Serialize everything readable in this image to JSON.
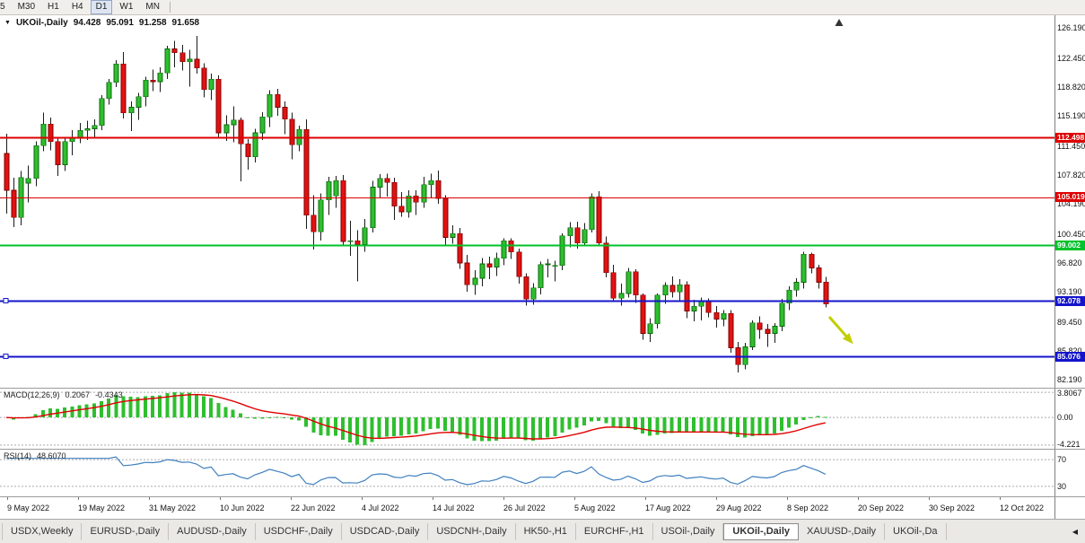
{
  "icons": {
    "dropdown": "▼",
    "scroll_left": "◀",
    "shift_marker": "triangle-up"
  },
  "toolbar": {
    "timeframes": [
      "5",
      "M30",
      "H1",
      "H4",
      "D1",
      "W1",
      "MN"
    ],
    "active_timeframe": "D1"
  },
  "chart": {
    "symbol": "UKOil-,Daily",
    "open": "94.428",
    "high": "95.091",
    "low": "91.258",
    "close": "91.658"
  },
  "chart_data": {
    "type": "candlestick",
    "symbol": "UKOil-,Daily",
    "timeframe": "Daily",
    "y_range": [
      81.2,
      127.8
    ],
    "y_ticks": [
      "126.190",
      "122.450",
      "118.820",
      "115.190",
      "111.450",
      "107.820",
      "104.190",
      "100.450",
      "96.820",
      "93.190",
      "89.450",
      "85.820",
      "82.190"
    ],
    "x_labels": [
      "9 May 2022",
      "19 May 2022",
      "31 May 2022",
      "10 Jun 2022",
      "22 Jun 2022",
      "4 Jul 2022",
      "14 Jul 2022",
      "26 Jul 2022",
      "5 Aug 2022",
      "17 Aug 2022",
      "29 Aug 2022",
      "8 Sep 2022",
      "20 Sep 2022",
      "30 Sep 2022",
      "12 Oct 2022"
    ],
    "x_label_start": 8,
    "x_label_step": 79,
    "bar_x0": 7,
    "bar_step": 8.15,
    "body_width": 5,
    "up_fill": "#2FBE2F",
    "up_border": "#0B6A0B",
    "down_fill": "#E31212",
    "down_border": "#7E0000",
    "wick_color": "#1A1A1A",
    "shift_marker_x": 935,
    "arrow": {
      "x1": 924,
      "y1": 336,
      "x2": 946,
      "y2": 361,
      "color": "#C2CE00"
    },
    "hlines": [
      {
        "value": 112.498,
        "label": "112.498",
        "color": "#DE0000",
        "width": 2,
        "anchor": false
      },
      {
        "value": 105.019,
        "label": "105.019",
        "color": "#DE0000",
        "width": 1,
        "anchor": false
      },
      {
        "value": 99.002,
        "label": "99.002",
        "color": "#00C22A",
        "width": 2,
        "anchor": false
      },
      {
        "value": 92.078,
        "label": "92.078",
        "color": "#1414CC",
        "width": 2,
        "anchor": true
      },
      {
        "value": 85.076,
        "label": "85.076",
        "color": "#1414CC",
        "width": 2,
        "anchor": true
      }
    ],
    "candles": [
      [
        110.5,
        113.0,
        103.0,
        105.9
      ],
      [
        105.9,
        107.5,
        101.3,
        102.5
      ],
      [
        102.5,
        108.3,
        101.5,
        107.5
      ],
      [
        106.8,
        109.0,
        104.4,
        107.4
      ],
      [
        107.4,
        112.0,
        106.4,
        111.5
      ],
      [
        111.5,
        115.6,
        110.8,
        114.2
      ],
      [
        114.2,
        115.0,
        110.9,
        112.0
      ],
      [
        112.0,
        112.5,
        107.7,
        109.1
      ],
      [
        109.1,
        112.4,
        108.3,
        112.0
      ],
      [
        112.0,
        113.4,
        110.3,
        112.5
      ],
      [
        112.5,
        114.3,
        111.8,
        113.4
      ],
      [
        113.4,
        114.6,
        112.2,
        113.6
      ],
      [
        113.6,
        114.8,
        112.4,
        114.0
      ],
      [
        114.0,
        117.8,
        113.4,
        117.4
      ],
      [
        117.4,
        119.8,
        116.6,
        119.4
      ],
      [
        119.4,
        122.2,
        118.8,
        121.7
      ],
      [
        121.7,
        123.2,
        114.9,
        115.6
      ],
      [
        115.6,
        117.0,
        113.3,
        116.3
      ],
      [
        116.3,
        118.1,
        114.7,
        117.6
      ],
      [
        117.6,
        120.1,
        116.4,
        119.7
      ],
      [
        119.7,
        121.0,
        118.3,
        119.5
      ],
      [
        119.5,
        121.3,
        118.2,
        120.6
      ],
      [
        120.6,
        124.0,
        119.8,
        123.6
      ],
      [
        123.6,
        124.6,
        121.3,
        123.1
      ],
      [
        123.1,
        124.1,
        120.9,
        122.0
      ],
      [
        122.0,
        123.5,
        118.9,
        122.3
      ],
      [
        122.3,
        125.2,
        120.5,
        121.2
      ],
      [
        121.2,
        121.8,
        117.5,
        118.5
      ],
      [
        118.5,
        120.5,
        117.2,
        119.8
      ],
      [
        119.8,
        120.3,
        112.6,
        113.1
      ],
      [
        113.1,
        115.3,
        112.1,
        114.1
      ],
      [
        114.1,
        116.4,
        111.9,
        114.7
      ],
      [
        114.7,
        115.0,
        107.0,
        111.7
      ],
      [
        111.7,
        112.3,
        108.5,
        110.1
      ],
      [
        110.1,
        113.6,
        109.4,
        113.1
      ],
      [
        113.1,
        115.7,
        112.2,
        115.1
      ],
      [
        115.1,
        118.4,
        113.8,
        117.9
      ],
      [
        117.9,
        118.6,
        115.2,
        116.3
      ],
      [
        116.3,
        117.0,
        112.9,
        114.8
      ],
      [
        114.8,
        115.6,
        109.8,
        111.6
      ],
      [
        111.6,
        114.0,
        110.8,
        113.5
      ],
      [
        113.5,
        114.8,
        101.1,
        102.8
      ],
      [
        102.8,
        105.3,
        98.5,
        100.7
      ],
      [
        100.7,
        105.5,
        99.6,
        104.7
      ],
      [
        104.7,
        107.6,
        102.8,
        107.0
      ],
      [
        105.2,
        107.7,
        103.7,
        107.1
      ],
      [
        107.1,
        107.8,
        98.9,
        99.5
      ],
      [
        99.5,
        102.1,
        97.7,
        99.6
      ],
      [
        99.6,
        100.9,
        94.5,
        99.1
      ],
      [
        99.1,
        102.3,
        98.2,
        101.2
      ],
      [
        101.2,
        107.1,
        100.6,
        106.3
      ],
      [
        106.3,
        107.9,
        104.9,
        107.4
      ],
      [
        107.4,
        108.0,
        105.1,
        106.9
      ],
      [
        106.9,
        107.5,
        102.2,
        103.9
      ],
      [
        103.9,
        105.7,
        102.6,
        103.2
      ],
      [
        103.2,
        105.9,
        102.5,
        105.2
      ],
      [
        105.2,
        105.9,
        102.8,
        104.4
      ],
      [
        104.4,
        107.6,
        103.7,
        106.6
      ],
      [
        106.6,
        108.0,
        105.0,
        107.1
      ],
      [
        107.1,
        108.4,
        104.2,
        104.9
      ],
      [
        104.9,
        105.3,
        99.1,
        100.0
      ],
      [
        100.0,
        101.5,
        99.2,
        100.5
      ],
      [
        100.5,
        101.2,
        96.1,
        96.8
      ],
      [
        96.8,
        97.8,
        93.2,
        94.1
      ],
      [
        94.1,
        95.9,
        92.8,
        94.9
      ],
      [
        94.9,
        97.4,
        93.9,
        96.7
      ],
      [
        96.7,
        97.6,
        94.8,
        96.3
      ],
      [
        96.3,
        98.1,
        95.2,
        97.4
      ],
      [
        97.4,
        99.9,
        96.5,
        99.6
      ],
      [
        99.6,
        99.9,
        97.3,
        98.2
      ],
      [
        98.2,
        98.6,
        94.2,
        95.1
      ],
      [
        95.1,
        95.5,
        91.5,
        92.3
      ],
      [
        92.3,
        94.3,
        91.6,
        93.7
      ],
      [
        93.7,
        97.0,
        92.9,
        96.6
      ],
      [
        96.6,
        97.3,
        95.0,
        96.7
      ],
      [
        96.5,
        97.1,
        94.5,
        96.5
      ],
      [
        96.5,
        100.5,
        95.9,
        100.2
      ],
      [
        100.2,
        101.9,
        98.8,
        101.2
      ],
      [
        101.2,
        102.0,
        98.6,
        99.3
      ],
      [
        99.3,
        101.8,
        98.9,
        101.0
      ],
      [
        101.0,
        105.5,
        100.6,
        105.1
      ],
      [
        105.1,
        105.8,
        98.9,
        99.3
      ],
      [
        99.3,
        100.1,
        95.0,
        95.6
      ],
      [
        95.6,
        96.6,
        91.9,
        92.4
      ],
      [
        92.4,
        94.2,
        91.5,
        93.0
      ],
      [
        93.0,
        96.2,
        92.5,
        95.7
      ],
      [
        95.7,
        96.0,
        91.8,
        92.8
      ],
      [
        92.8,
        93.0,
        87.2,
        88.0
      ],
      [
        88.0,
        89.9,
        86.9,
        89.2
      ],
      [
        89.2,
        93.0,
        88.6,
        92.8
      ],
      [
        92.8,
        94.4,
        91.7,
        94.0
      ],
      [
        94.0,
        95.1,
        92.5,
        93.2
      ],
      [
        93.2,
        94.8,
        92.0,
        94.1
      ],
      [
        94.1,
        94.5,
        89.9,
        90.8
      ],
      [
        90.8,
        92.2,
        89.5,
        91.4
      ],
      [
        91.4,
        92.5,
        89.6,
        92.0
      ],
      [
        92.0,
        92.4,
        90.0,
        90.6
      ],
      [
        90.6,
        91.4,
        88.7,
        89.8
      ],
      [
        89.8,
        90.9,
        88.9,
        90.5
      ],
      [
        90.5,
        90.9,
        85.6,
        86.2
      ],
      [
        86.2,
        86.9,
        83.1,
        84.1
      ],
      [
        84.1,
        86.8,
        83.5,
        86.3
      ],
      [
        86.3,
        89.6,
        85.9,
        89.3
      ],
      [
        89.3,
        90.1,
        87.3,
        88.5
      ],
      [
        88.5,
        89.2,
        86.3,
        88.0
      ],
      [
        88.0,
        89.3,
        86.8,
        88.9
      ],
      [
        88.9,
        92.3,
        88.3,
        91.8
      ],
      [
        91.8,
        93.9,
        90.9,
        93.4
      ],
      [
        93.4,
        94.9,
        92.6,
        94.4
      ],
      [
        94.4,
        98.2,
        93.6,
        97.9
      ],
      [
        97.9,
        98.1,
        95.5,
        96.2
      ],
      [
        96.2,
        96.6,
        93.6,
        94.4
      ],
      [
        94.428,
        95.091,
        91.258,
        91.658
      ]
    ]
  },
  "macd": {
    "label": "MACD(12,26,9)",
    "main_value": "0.2067",
    "signal_value": "-0.4343",
    "ticks": [
      "3.8067",
      "0.00",
      "-4.221"
    ],
    "histogram_color": "#2FBF2F",
    "signal_color": "#E00000"
  },
  "rsi": {
    "label": "RSI(14)",
    "value": "48.6070",
    "levels": [
      70,
      30
    ],
    "level_labels": [
      "70",
      "30"
    ],
    "line_color": "#3F7FBF",
    "range": [
      15,
      85
    ]
  },
  "tabs": {
    "items": [
      "USDX,Weekly",
      "EURUSD-,Daily",
      "AUDUSD-,Daily",
      "USDCHF-,Daily",
      "USDCAD-,Daily",
      "USDCNH-,Daily",
      "HK50-,H1",
      "EURCHF-,H1",
      "USOil-,Daily",
      "UKOil-,Daily",
      "XAUUSD-,Daily",
      "UKOil-,Da"
    ],
    "active_index": 9
  }
}
